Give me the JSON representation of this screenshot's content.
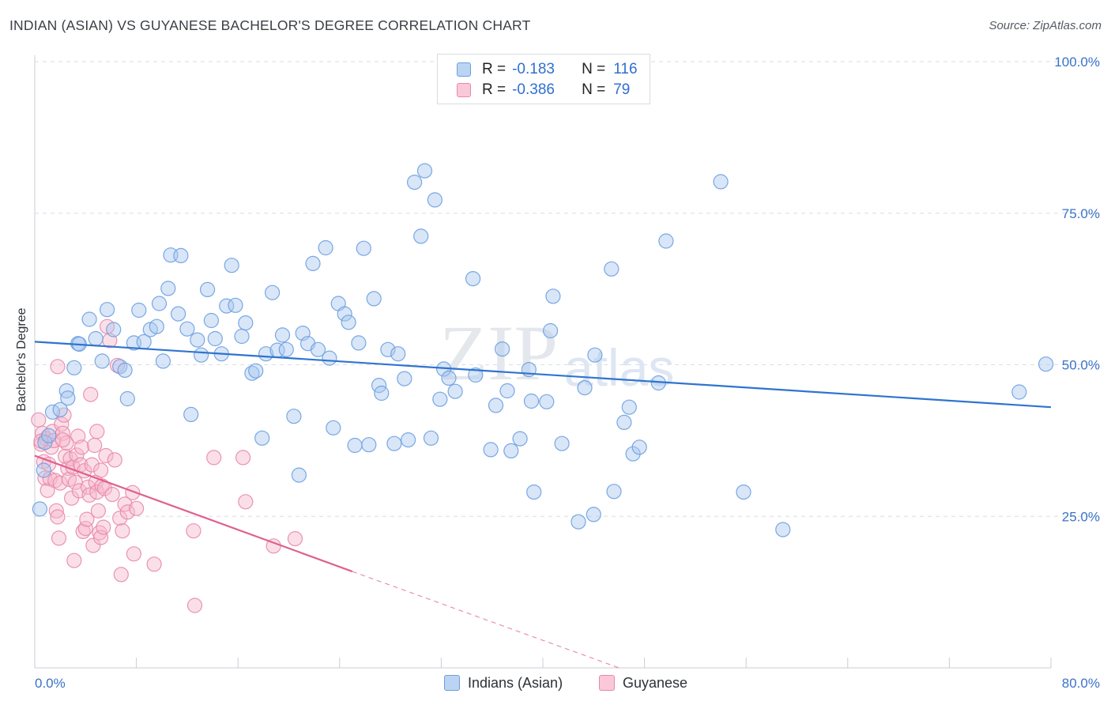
{
  "header": {
    "title": "INDIAN (ASIAN) VS GUYANESE BACHELOR'S DEGREE CORRELATION CHART",
    "source": "Source: ZipAtlas.com"
  },
  "watermark": {
    "zip": "ZIP",
    "atlas": "atlas"
  },
  "legend": {
    "r_label": "R =",
    "n_label": "N =",
    "items": [
      {
        "name": "Indians (Asian)",
        "r": "-0.183",
        "n": "116",
        "fill": "#a9c8f0",
        "stroke": "#6b9ee0"
      },
      {
        "name": "Guyanese",
        "r": "-0.386",
        "n": "79",
        "fill": "#f7b8cc",
        "stroke": "#e889a8"
      }
    ]
  },
  "colors": {
    "blue_line": "#2f74d0",
    "pink_line": "#e06090",
    "tick_text": "#3a72c8",
    "grid": "#d9dde3"
  },
  "chart_data": {
    "type": "scatter",
    "title": "INDIAN (ASIAN) VS GUYANESE BACHELOR'S DEGREE CORRELATION CHART",
    "xlabel": "",
    "ylabel": "Bachelor's Degree",
    "xlim": [
      0,
      80
    ],
    "ylim": [
      0,
      100
    ],
    "x_tick_labels": [
      "0.0%",
      "80.0%"
    ],
    "y_ticks": [
      25,
      50,
      75,
      100
    ],
    "y_tick_labels": [
      "25.0%",
      "50.0%",
      "75.0%",
      "100.0%"
    ],
    "grid": true,
    "series": [
      {
        "name": "Indians (Asian)",
        "r": -0.183,
        "n": 116,
        "trend": {
          "x": [
            0,
            80
          ],
          "y": [
            53.8,
            43.0
          ]
        },
        "points": [
          [
            2.5,
            45.7
          ],
          [
            1.4,
            42.2
          ],
          [
            2.6,
            44.5
          ],
          [
            3.1,
            49.5
          ],
          [
            3.4,
            53.5
          ],
          [
            3.5,
            53.4
          ],
          [
            4.3,
            57.5
          ],
          [
            4.8,
            54.3
          ],
          [
            5.3,
            50.6
          ],
          [
            5.7,
            59.1
          ],
          [
            6.2,
            55.8
          ],
          [
            6.7,
            49.7
          ],
          [
            7.1,
            49.1
          ],
          [
            7.3,
            44.4
          ],
          [
            7.8,
            53.6
          ],
          [
            8.2,
            59.0
          ],
          [
            8.6,
            53.8
          ],
          [
            9.1,
            55.8
          ],
          [
            9.6,
            56.3
          ],
          [
            9.8,
            60.1
          ],
          [
            10.1,
            50.6
          ],
          [
            10.5,
            62.6
          ],
          [
            10.7,
            68.1
          ],
          [
            11.3,
            58.4
          ],
          [
            11.5,
            68.0
          ],
          [
            12.0,
            55.9
          ],
          [
            12.3,
            41.8
          ],
          [
            12.8,
            54.1
          ],
          [
            13.1,
            51.6
          ],
          [
            13.6,
            62.4
          ],
          [
            13.9,
            57.3
          ],
          [
            14.2,
            54.3
          ],
          [
            14.7,
            51.8
          ],
          [
            15.1,
            59.7
          ],
          [
            15.5,
            66.4
          ],
          [
            15.8,
            59.8
          ],
          [
            16.3,
            54.7
          ],
          [
            16.6,
            56.9
          ],
          [
            17.1,
            48.6
          ],
          [
            17.4,
            49.0
          ],
          [
            17.9,
            37.9
          ],
          [
            18.2,
            51.8
          ],
          [
            18.7,
            61.9
          ],
          [
            19.1,
            52.4
          ],
          [
            19.5,
            54.9
          ],
          [
            19.8,
            52.5
          ],
          [
            20.4,
            41.5
          ],
          [
            20.8,
            31.8
          ],
          [
            21.1,
            55.2
          ],
          [
            21.5,
            53.5
          ],
          [
            21.9,
            66.7
          ],
          [
            22.3,
            52.5
          ],
          [
            22.9,
            69.3
          ],
          [
            23.2,
            51.1
          ],
          [
            23.5,
            39.6
          ],
          [
            23.9,
            60.1
          ],
          [
            24.4,
            58.4
          ],
          [
            24.7,
            57.0
          ],
          [
            25.2,
            36.7
          ],
          [
            25.5,
            53.6
          ],
          [
            25.9,
            69.2
          ],
          [
            26.3,
            36.8
          ],
          [
            26.7,
            60.9
          ],
          [
            27.1,
            46.6
          ],
          [
            27.3,
            45.3
          ],
          [
            27.8,
            52.5
          ],
          [
            28.3,
            37.0
          ],
          [
            28.6,
            51.8
          ],
          [
            29.1,
            47.7
          ],
          [
            29.4,
            37.6
          ],
          [
            29.9,
            80.1
          ],
          [
            30.4,
            71.2
          ],
          [
            30.7,
            82.0
          ],
          [
            31.2,
            37.9
          ],
          [
            31.5,
            77.2
          ],
          [
            31.9,
            44.3
          ],
          [
            32.2,
            49.3
          ],
          [
            32.6,
            47.8
          ],
          [
            33.1,
            45.6
          ],
          [
            34.5,
            64.2
          ],
          [
            34.7,
            48.3
          ],
          [
            35.9,
            36.0
          ],
          [
            36.3,
            43.3
          ],
          [
            36.8,
            52.6
          ],
          [
            37.2,
            45.7
          ],
          [
            37.5,
            35.8
          ],
          [
            38.2,
            37.8
          ],
          [
            38.9,
            49.2
          ],
          [
            39.1,
            44.0
          ],
          [
            39.3,
            29.0
          ],
          [
            40.3,
            43.9
          ],
          [
            40.6,
            55.6
          ],
          [
            40.8,
            61.3
          ],
          [
            41.5,
            37.0
          ],
          [
            42.8,
            24.1
          ],
          [
            43.3,
            46.2
          ],
          [
            44.0,
            25.3
          ],
          [
            44.1,
            51.6
          ],
          [
            45.4,
            65.8
          ],
          [
            45.6,
            29.1
          ],
          [
            46.4,
            40.5
          ],
          [
            46.8,
            43.0
          ],
          [
            47.1,
            35.3
          ],
          [
            47.6,
            36.4
          ],
          [
            49.1,
            47.0
          ],
          [
            49.7,
            70.4
          ],
          [
            54.0,
            80.2
          ],
          [
            55.8,
            29.0
          ],
          [
            58.9,
            22.8
          ],
          [
            77.5,
            45.5
          ],
          [
            79.6,
            50.1
          ],
          [
            0.4,
            26.2
          ],
          [
            0.7,
            32.6
          ],
          [
            0.8,
            37.2
          ],
          [
            1.1,
            38.3
          ],
          [
            2.0,
            42.6
          ]
        ]
      },
      {
        "name": "Guyanese",
        "r": -0.386,
        "n": 79,
        "trend": {
          "x": [
            0,
            25
          ],
          "y": [
            35.0,
            15.9
          ]
        },
        "trend_dashed": {
          "x": [
            25,
            46
          ],
          "y": [
            15.9,
            0
          ]
        },
        "points": [
          [
            0.3,
            40.9
          ],
          [
            0.5,
            36.9
          ],
          [
            0.6,
            38.7
          ],
          [
            0.7,
            34.0
          ],
          [
            0.8,
            31.3
          ],
          [
            0.9,
            37.8
          ],
          [
            1.0,
            29.3
          ],
          [
            1.1,
            33.6
          ],
          [
            1.2,
            31.2
          ],
          [
            1.3,
            36.4
          ],
          [
            1.4,
            39.0
          ],
          [
            1.5,
            37.5
          ],
          [
            1.6,
            30.9
          ],
          [
            1.7,
            25.9
          ],
          [
            1.8,
            24.9
          ],
          [
            1.9,
            21.4
          ],
          [
            2.0,
            30.5
          ],
          [
            2.1,
            40.2
          ],
          [
            2.2,
            38.7
          ],
          [
            2.3,
            41.7
          ],
          [
            2.4,
            34.9
          ],
          [
            2.5,
            37.1
          ],
          [
            2.6,
            32.9
          ],
          [
            2.7,
            31.1
          ],
          [
            2.8,
            34.5
          ],
          [
            2.9,
            28.0
          ],
          [
            3.0,
            33.1
          ],
          [
            3.1,
            17.7
          ],
          [
            3.2,
            30.6
          ],
          [
            3.3,
            35.1
          ],
          [
            3.4,
            38.2
          ],
          [
            3.5,
            29.2
          ],
          [
            3.6,
            33.5
          ],
          [
            3.7,
            36.4
          ],
          [
            3.8,
            22.5
          ],
          [
            3.9,
            32.5
          ],
          [
            4.0,
            23.0
          ],
          [
            4.1,
            24.5
          ],
          [
            4.2,
            29.8
          ],
          [
            4.3,
            28.5
          ],
          [
            4.4,
            45.1
          ],
          [
            4.5,
            33.5
          ],
          [
            4.6,
            20.2
          ],
          [
            4.7,
            36.7
          ],
          [
            4.8,
            30.6
          ],
          [
            4.9,
            29.0
          ],
          [
            5.0,
            25.9
          ],
          [
            5.1,
            22.3
          ],
          [
            5.2,
            21.5
          ],
          [
            5.3,
            30.0
          ],
          [
            5.4,
            23.2
          ],
          [
            5.5,
            29.6
          ],
          [
            5.6,
            35.0
          ],
          [
            5.7,
            56.3
          ],
          [
            5.9,
            54.0
          ],
          [
            6.1,
            28.6
          ],
          [
            6.3,
            34.3
          ],
          [
            6.5,
            49.9
          ],
          [
            6.7,
            24.7
          ],
          [
            6.9,
            22.6
          ],
          [
            7.1,
            27.0
          ],
          [
            7.3,
            25.7
          ],
          [
            7.7,
            28.9
          ],
          [
            7.8,
            18.8
          ],
          [
            8.0,
            26.3
          ],
          [
            9.4,
            17.1
          ],
          [
            12.5,
            22.6
          ],
          [
            12.6,
            10.3
          ],
          [
            14.1,
            34.7
          ],
          [
            16.4,
            34.7
          ],
          [
            16.6,
            27.4
          ],
          [
            18.8,
            20.1
          ],
          [
            20.5,
            21.3
          ],
          [
            1.8,
            49.7
          ],
          [
            2.2,
            37.6
          ],
          [
            0.5,
            37.4
          ],
          [
            5.2,
            32.6
          ],
          [
            4.9,
            39.0
          ],
          [
            6.8,
            15.4
          ]
        ]
      }
    ]
  }
}
